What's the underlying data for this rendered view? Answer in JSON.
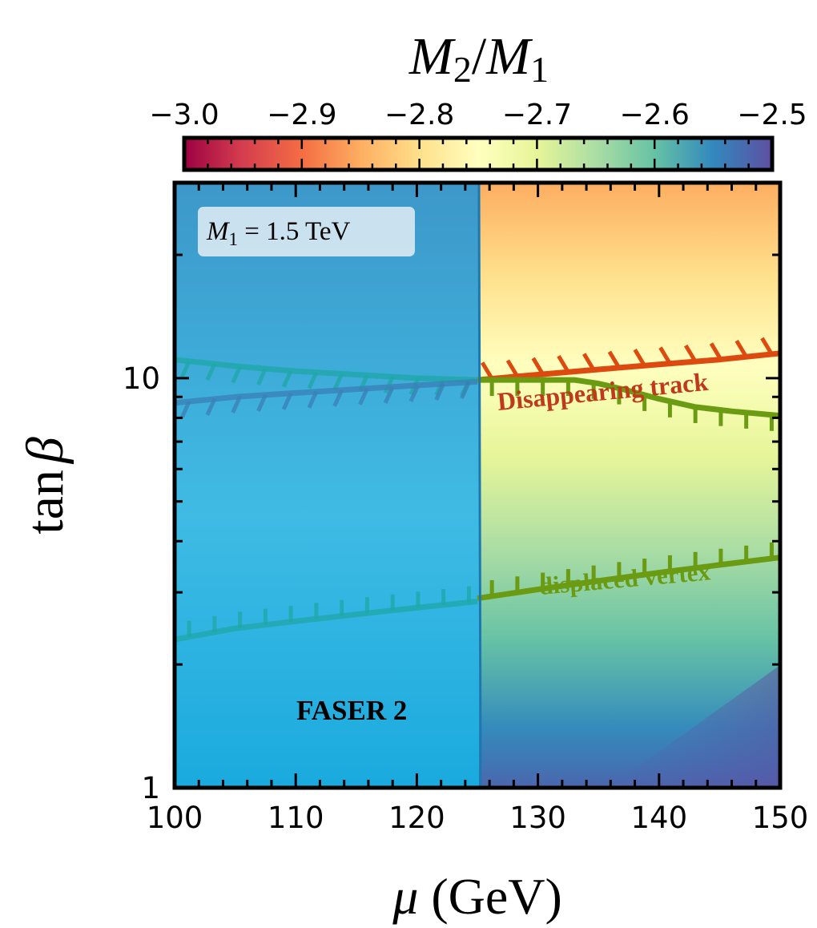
{
  "chart_data": {
    "type": "heatmap",
    "colorbar": {
      "title_main": "M",
      "title_sub1": "2",
      "title_slash": "/",
      "title_sub2": "1",
      "range": [
        -3.0,
        -2.5
      ],
      "ticks": [
        "−3.0",
        "−2.9",
        "−2.8",
        "−2.7",
        "−2.6",
        "−2.5"
      ],
      "tick_values": [
        -3.0,
        -2.9,
        -2.8,
        -2.7,
        -2.6,
        -2.5
      ],
      "colormap": [
        "#9e0142",
        "#d53e4f",
        "#f46d43",
        "#fdae61",
        "#fee08b",
        "#ffffbf",
        "#e6f598",
        "#abdda4",
        "#66c2a5",
        "#3288bd",
        "#5e4fa2"
      ]
    },
    "x_axis": {
      "label_symbol": "μ",
      "label_unit": " (GeV)",
      "range": [
        100,
        150
      ],
      "ticks": [
        "100",
        "110",
        "120",
        "130",
        "140",
        "150"
      ],
      "tick_values": [
        100,
        110,
        120,
        130,
        140,
        150
      ],
      "scale": "linear"
    },
    "y_axis": {
      "label_func": "tan",
      "label_symbol": "β",
      "range": [
        1,
        30
      ],
      "ticks": [
        "1",
        "10"
      ],
      "tick_values": [
        1,
        10
      ],
      "scale": "log"
    },
    "annotations": {
      "param_box_symbol": "M",
      "param_box_sub": "1",
      "param_box_value": " = 1.5 TeV",
      "experiment": "FASER 2",
      "disappearing_label": "Disappearing track",
      "displaced_label": "displaced vertex"
    },
    "regions": {
      "mu_boundary": 125,
      "left_color": "#2ea6db",
      "right_colormap_value_top": -2.85,
      "right_colormap_value_bottom": -2.52
    },
    "series": [
      {
        "name": "Disappearing track (left)",
        "color": "#1fa7a7",
        "x": [
          100,
          105,
          110,
          115,
          120,
          125
        ],
        "y": [
          11.1,
          10.7,
          10.4,
          10.2,
          10.0,
          9.9
        ]
      },
      {
        "name": "Displaced vertex upper (left)",
        "color": "#3a7fb5",
        "x": [
          100,
          105,
          110,
          115,
          120,
          125
        ],
        "y": [
          8.7,
          9.0,
          9.2,
          9.4,
          9.6,
          9.8
        ]
      },
      {
        "name": "Displaced vertex lower (left)",
        "color": "#1fa7a7",
        "x": [
          100,
          105,
          110,
          115,
          120,
          125
        ],
        "y": [
          2.3,
          2.45,
          2.55,
          2.65,
          2.75,
          2.85
        ]
      },
      {
        "name": "Disappearing track",
        "color": "#dc4a10",
        "x": [
          125,
          130,
          135,
          140,
          145,
          150
        ],
        "y": [
          9.9,
          10.2,
          10.5,
          10.8,
          11.1,
          11.5
        ]
      },
      {
        "name": "Displaced vertex upper",
        "color": "#6b9b12",
        "x": [
          125,
          130,
          133,
          135,
          137,
          140,
          143,
          146,
          150
        ],
        "y": [
          9.9,
          9.9,
          9.9,
          9.7,
          9.4,
          8.9,
          8.5,
          8.3,
          8.1
        ]
      },
      {
        "name": "Displaced vertex lower",
        "color": "#6b9b12",
        "x": [
          125,
          130,
          135,
          140,
          145,
          150
        ],
        "y": [
          2.9,
          3.05,
          3.2,
          3.35,
          3.5,
          3.65
        ]
      }
    ]
  }
}
